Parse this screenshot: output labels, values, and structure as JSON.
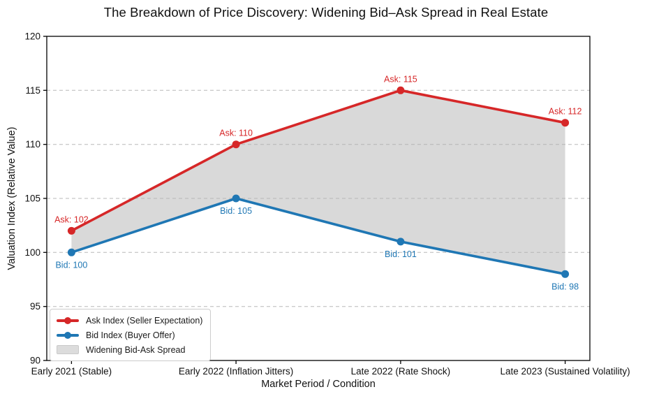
{
  "chart_data": {
    "type": "line",
    "title": "The Breakdown of Price Discovery: Widening Bid–Ask Spread in Real Estate",
    "xlabel": "Market Period / Condition",
    "ylabel": "Valuation Index (Relative Value)",
    "categories": [
      "Early 2021 (Stable)",
      "Early 2022 (Inflation Jitters)",
      "Late 2022 (Rate Shock)",
      "Late 2023 (Sustained Volatility)"
    ],
    "ylim": [
      90,
      120
    ],
    "yticks": [
      90,
      95,
      100,
      105,
      110,
      115,
      120
    ],
    "grid": "horizontal-dashed",
    "legend_position": "lower left",
    "series": [
      {
        "name": "Ask Index (Seller Expectation)",
        "color": "#d62728",
        "values": [
          102,
          110,
          115,
          112
        ],
        "point_labels": [
          "Ask: 102",
          "Ask: 110",
          "Ask: 115",
          "Ask: 112"
        ]
      },
      {
        "name": "Bid Index (Buyer Offer)",
        "color": "#1f77b4",
        "values": [
          100,
          105,
          101,
          98
        ],
        "point_labels": [
          "Bid: 100",
          "Bid: 105",
          "Bid: 101",
          "Bid: 98"
        ]
      }
    ],
    "fill_between": {
      "label": "Widening Bid-Ask Spread",
      "color": "#b4b4b4",
      "opacity": 0.5
    },
    "colors": {
      "grid": "#b8b8b8",
      "spine": "#000000",
      "text": "#111111"
    }
  }
}
